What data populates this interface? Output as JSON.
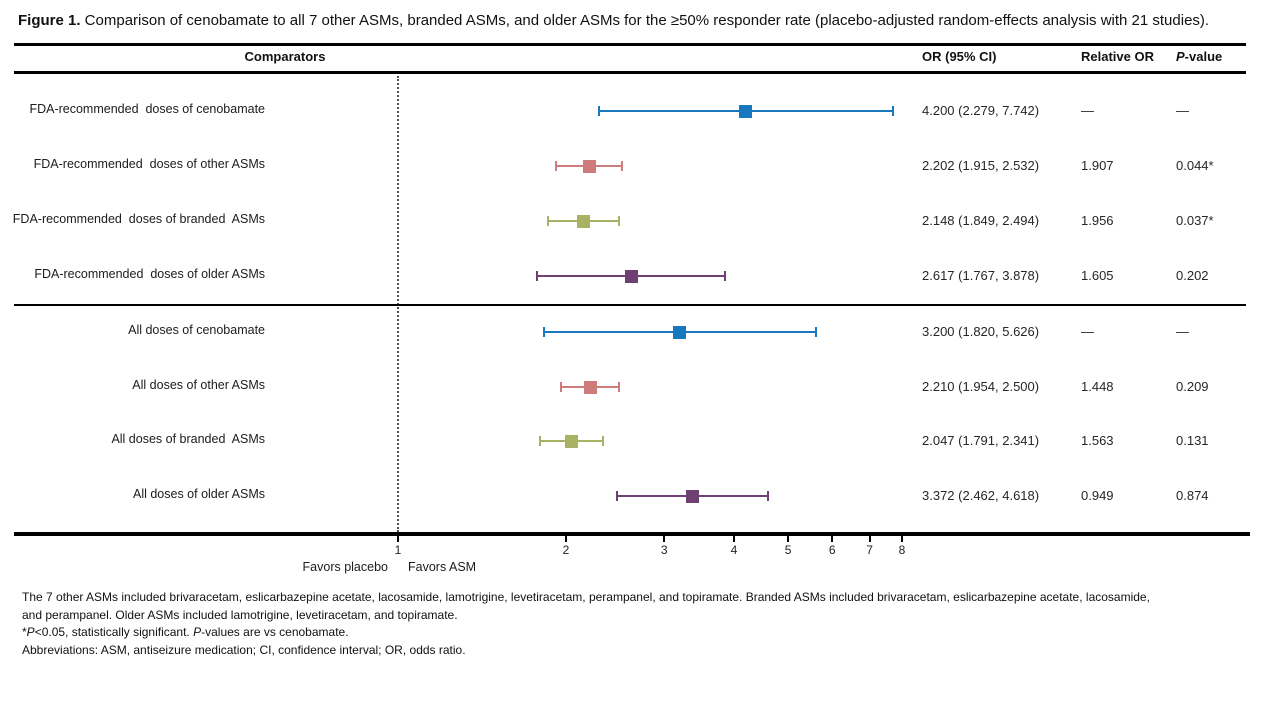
{
  "figure": {
    "title_label": "Figure 1.",
    "title_text": " Comparison of cenobamate to all 7 other ASMs, branded ASMs, and older ASMs for the ≥50% responder rate (placebo-adjusted random-effects analysis with 21 studies)."
  },
  "table_headers": {
    "comparators": "Comparators",
    "or_ci": "OR (95% CI)",
    "relative_or": "Relative OR",
    "p_italic": "P",
    "p_rest": "-value"
  },
  "axis": {
    "favors_left": "Favors placebo",
    "favors_right": "Favors ASM"
  },
  "chart_data": {
    "type": "forest",
    "x_scale": "log",
    "x_ticks": [
      1,
      2,
      3,
      4,
      5,
      6,
      7,
      8
    ],
    "reference_line": 1,
    "columns": [
      "Comparators",
      "OR (95% CI)",
      "Relative OR",
      "P-value"
    ],
    "groups": [
      {
        "name": "FDA-recommended doses",
        "rows": [
          {
            "label": "FDA-recommended  doses of cenobamate",
            "or": 4.2,
            "ci_low": 2.279,
            "ci_high": 7.742,
            "or_text": "4.200 (2.279, 7.742)",
            "relative_or": "—",
            "p_value": "—",
            "color": "#1878be"
          },
          {
            "label": "FDA-recommended  doses of other ASMs",
            "or": 2.202,
            "ci_low": 1.915,
            "ci_high": 2.532,
            "or_text": "2.202 (1.915, 2.532)",
            "relative_or": "1.907",
            "p_value": "0.044*",
            "color": "#cd7b7b"
          },
          {
            "label": "FDA-recommended  doses of branded  ASMs",
            "or": 2.148,
            "ci_low": 1.849,
            "ci_high": 2.494,
            "or_text": "2.148 (1.849, 2.494)",
            "relative_or": "1.956",
            "p_value": "0.037*",
            "color": "#a9b164"
          },
          {
            "label": "FDA-recommended  doses of older ASMs",
            "or": 2.617,
            "ci_low": 1.767,
            "ci_high": 3.878,
            "or_text": "2.617 (1.767, 3.878)",
            "relative_or": "1.605",
            "p_value": "0.202",
            "color": "#6e4172"
          }
        ]
      },
      {
        "name": "All doses",
        "rows": [
          {
            "label": "All doses of cenobamate",
            "or": 3.2,
            "ci_low": 1.82,
            "ci_high": 5.626,
            "or_text": "3.200 (1.820, 5.626)",
            "relative_or": "—",
            "p_value": "—",
            "color": "#1878be"
          },
          {
            "label": "All doses of other ASMs",
            "or": 2.21,
            "ci_low": 1.954,
            "ci_high": 2.5,
            "or_text": "2.210 (1.954, 2.500)",
            "relative_or": "1.448",
            "p_value": "0.209",
            "color": "#cd7b7b"
          },
          {
            "label": "All doses of branded  ASMs",
            "or": 2.047,
            "ci_low": 1.791,
            "ci_high": 2.341,
            "or_text": "2.047 (1.791, 2.341)",
            "relative_or": "1.563",
            "p_value": "0.131",
            "color": "#a9b164"
          },
          {
            "label": "All doses of older ASMs",
            "or": 3.372,
            "ci_low": 2.462,
            "ci_high": 4.618,
            "or_text": "3.372 (2.462, 4.618)",
            "relative_or": "0.949",
            "p_value": "0.874",
            "color": "#6e4172"
          }
        ]
      }
    ],
    "xlabel_left": "Favors placebo",
    "xlabel_right": "Favors ASM"
  },
  "footnotes": {
    "lines": [
      {
        "segments": [
          {
            "text": "The 7 other ASMs included brivaracetam, eslicarbazepine acetate, lacosamide, lamotrigine, levetiracetam, perampanel, and topiramate. Branded ASMs included brivaracetam, eslicarbazepine acetate, lacosamide,"
          }
        ]
      },
      {
        "segments": [
          {
            "text": "and perampanel. Older ASMs included lamotrigine, levetiracetam, and topiramate."
          }
        ]
      },
      {
        "segments": [
          {
            "text": "*"
          },
          {
            "text": "P",
            "italic": true
          },
          {
            "text": "<0.05, statistically significant. "
          },
          {
            "text": "P",
            "italic": true
          },
          {
            "text": "-values are vs cenobamate."
          }
        ]
      },
      {
        "segments": [
          {
            "text": "Abbreviations: ASM, antiseizure medication; CI, confidence interval; OR, odds ratio."
          }
        ]
      }
    ]
  },
  "colors": {
    "cenobamate_blue": "#1878be",
    "other_asms_pink": "#cd7b7b",
    "branded_asms_olive": "#a9b164",
    "older_asms_purple": "#6e4172",
    "rule_black": "#000000"
  }
}
